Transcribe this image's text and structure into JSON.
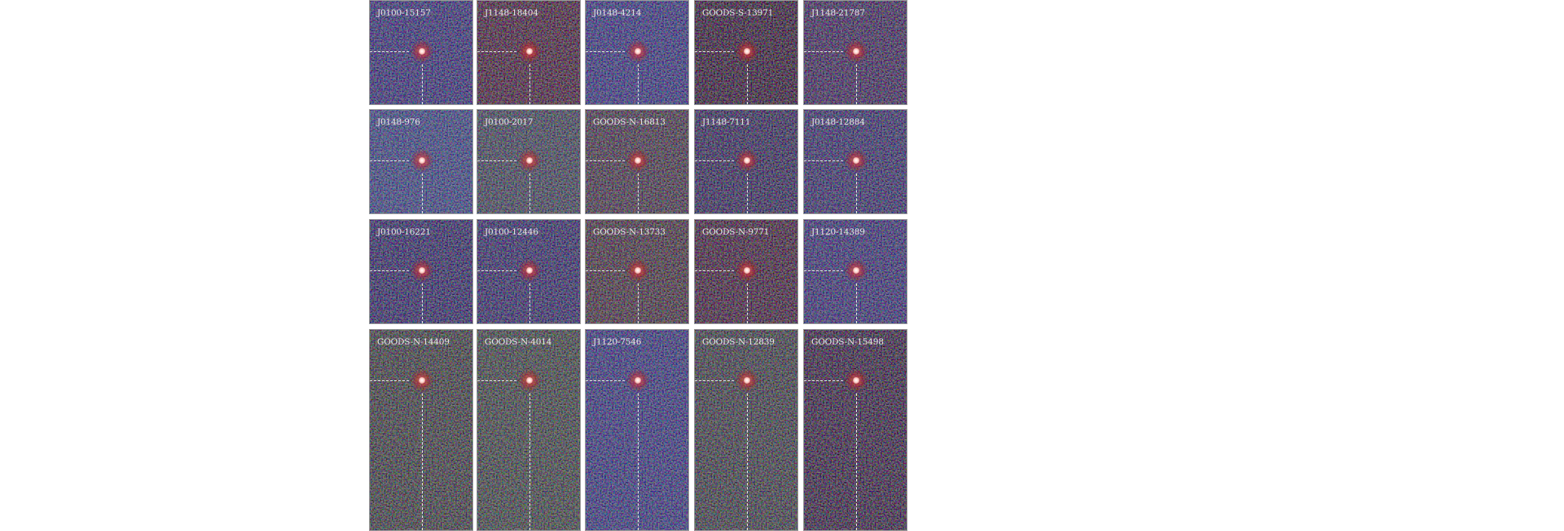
{
  "figure": {
    "panels": [
      {
        "label": "J0100-15157",
        "tint": "#1c1f4a"
      },
      {
        "label": "J1148-18404",
        "tint": "#2a1414"
      },
      {
        "label": "J0148-4214",
        "tint": "#1d2352"
      },
      {
        "label": "GOODS-S-13971",
        "tint": "#1a0e0e"
      },
      {
        "label": "J1148-21787",
        "tint": "#231a30"
      },
      {
        "label": "J0148-976",
        "tint": "#213055"
      },
      {
        "label": "J0100-2017",
        "tint": "#26302e"
      },
      {
        "label": "GOODS-N-16813",
        "tint": "#2a2520"
      },
      {
        "label": "J1148-7111",
        "tint": "#1a1a2e"
      },
      {
        "label": "J0148-12884",
        "tint": "#1d1f3e"
      },
      {
        "label": "J0100-16221",
        "tint": "#181a3a"
      },
      {
        "label": "J0100-12446",
        "tint": "#1a1c3c"
      },
      {
        "label": "GOODS-N-13733",
        "tint": "#2a2218"
      },
      {
        "label": "GOODS-N-9771",
        "tint": "#261414"
      },
      {
        "label": "J1120-14389",
        "tint": "#1e2048"
      },
      {
        "label": "GOODS-N-14409",
        "tint": "#232a18"
      },
      {
        "label": "GOODS-N-4014",
        "tint": "#25301c"
      },
      {
        "label": "J1120-7546",
        "tint": "#1d2450"
      },
      {
        "label": "GOODS-N-12839",
        "tint": "#232a1c"
      },
      {
        "label": "GOODS-N-15498",
        "tint": "#1c1418"
      }
    ]
  }
}
